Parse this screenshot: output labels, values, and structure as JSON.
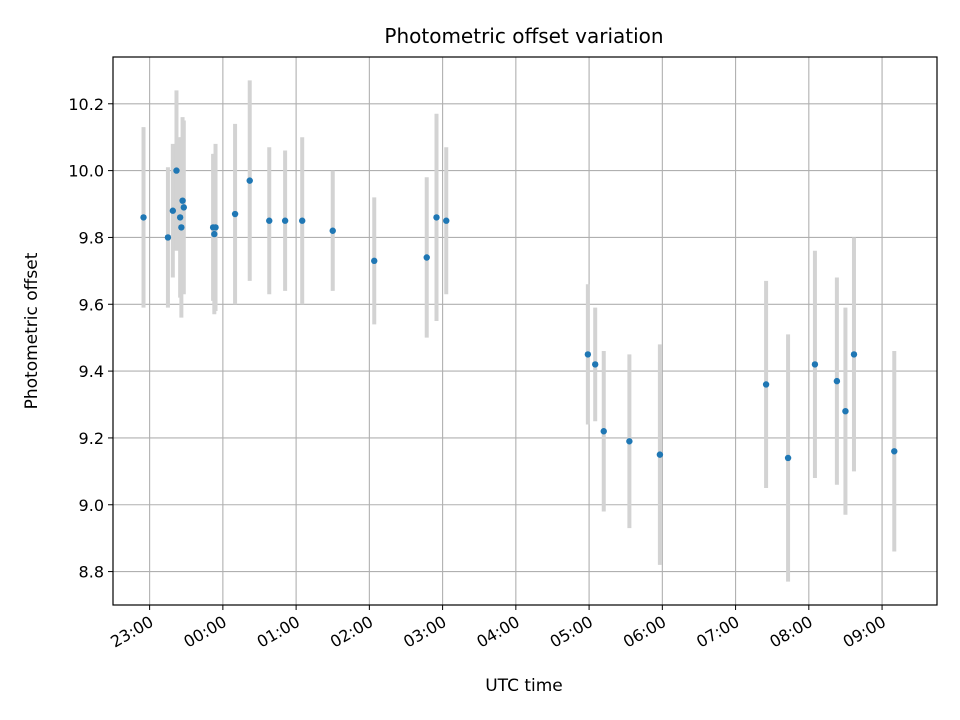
{
  "chart_data": {
    "type": "scatter",
    "title": "Photometric offset variation",
    "xlabel": "UTC time",
    "ylabel": "Photometric offset",
    "xlim": [
      "22:30",
      "09:45"
    ],
    "ylim": [
      8.7,
      10.34
    ],
    "x_ticks": [
      "23:00",
      "00:00",
      "01:00",
      "02:00",
      "03:00",
      "04:00",
      "05:00",
      "06:00",
      "07:00",
      "08:00",
      "09:00"
    ],
    "y_ticks": [
      "8.8",
      "9.0",
      "9.2",
      "9.4",
      "9.6",
      "9.8",
      "10.0",
      "10.2"
    ],
    "grid": true,
    "colors": {
      "point": "#1f77b4",
      "errorbar": "#d3d3d3",
      "grid": "#b0b0b0"
    },
    "points": [
      {
        "x": "22:55",
        "y": 9.86,
        "err": 0.27
      },
      {
        "x": "23:15",
        "y": 9.8,
        "err": 0.21
      },
      {
        "x": "23:19",
        "y": 9.88,
        "err": 0.2
      },
      {
        "x": "23:22",
        "y": 10.0,
        "err": 0.24
      },
      {
        "x": "23:25",
        "y": 9.86,
        "err": 0.24
      },
      {
        "x": "23:26",
        "y": 9.83,
        "err": 0.27
      },
      {
        "x": "23:27",
        "y": 9.91,
        "err": 0.25
      },
      {
        "x": "23:28",
        "y": 9.89,
        "err": 0.26
      },
      {
        "x": "23:52",
        "y": 9.83,
        "err": 0.22
      },
      {
        "x": "23:53",
        "y": 9.81,
        "err": 0.24
      },
      {
        "x": "23:54",
        "y": 9.83,
        "err": 0.25
      },
      {
        "x": "00:10",
        "y": 9.87,
        "err": 0.27
      },
      {
        "x": "00:22",
        "y": 9.97,
        "err": 0.3
      },
      {
        "x": "00:38",
        "y": 9.85,
        "err": 0.22
      },
      {
        "x": "00:51",
        "y": 9.85,
        "err": 0.21
      },
      {
        "x": "01:05",
        "y": 9.85,
        "err": 0.25
      },
      {
        "x": "01:30",
        "y": 9.82,
        "err": 0.18
      },
      {
        "x": "02:04",
        "y": 9.73,
        "err": 0.19
      },
      {
        "x": "02:47",
        "y": 9.74,
        "err": 0.24
      },
      {
        "x": "02:55",
        "y": 9.86,
        "err": 0.31
      },
      {
        "x": "03:03",
        "y": 9.85,
        "err": 0.22
      },
      {
        "x": "04:59",
        "y": 9.45,
        "err": 0.21
      },
      {
        "x": "05:05",
        "y": 9.42,
        "err": 0.17
      },
      {
        "x": "05:12",
        "y": 9.22,
        "err": 0.24
      },
      {
        "x": "05:33",
        "y": 9.19,
        "err": 0.26
      },
      {
        "x": "05:58",
        "y": 9.15,
        "err": 0.33
      },
      {
        "x": "07:25",
        "y": 9.36,
        "err": 0.31
      },
      {
        "x": "07:43",
        "y": 9.14,
        "err": 0.37
      },
      {
        "x": "08:05",
        "y": 9.42,
        "err": 0.34
      },
      {
        "x": "08:23",
        "y": 9.37,
        "err": 0.31
      },
      {
        "x": "08:30",
        "y": 9.28,
        "err": 0.31
      },
      {
        "x": "08:37",
        "y": 9.45,
        "err": 0.35
      },
      {
        "x": "09:10",
        "y": 9.16,
        "err": 0.3
      }
    ]
  }
}
